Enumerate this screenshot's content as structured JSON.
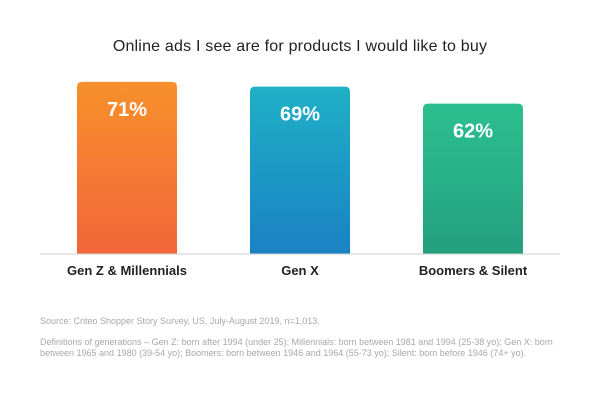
{
  "chart_data": {
    "type": "bar",
    "title": "Online ads I see are for products I would like to buy",
    "categories": [
      "Gen Z & Millennials",
      "Gen X",
      "Boomers & Silent"
    ],
    "values": [
      71,
      69,
      62
    ],
    "value_labels": [
      "71%",
      "69%",
      "62%"
    ],
    "ylim": [
      0,
      80
    ],
    "xlabel": "",
    "ylabel": "",
    "grid": false,
    "legend": "none",
    "colors": [
      [
        "#f7902b",
        "#f2653a"
      ],
      [
        "#1fb0c6",
        "#1a82c4"
      ],
      [
        "#2cbf8e",
        "#24a07f"
      ]
    ]
  },
  "footer": {
    "source": "Source: Criteo Shopper Story Survey, US, July-August 2019, n=1,013.",
    "definitions": "Definitions of generations – Gen Z: born after 1994 (under 25); Millennials: born between 1981 and 1994 (25-38 yo); Gen X: born between 1965 and 1980 (39-54 yo); Boomers: born between 1946 and 1964 (55-73 yo); Silent: born before 1946 (74+ yo)."
  }
}
